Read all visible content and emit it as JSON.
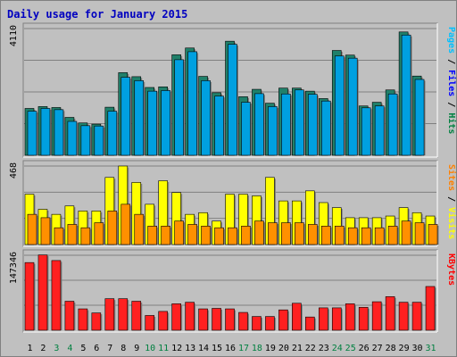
{
  "chart_data": {
    "type": "bar",
    "title": "Daily usage for January 2015",
    "categories": [
      "1",
      "2",
      "3",
      "4",
      "5",
      "6",
      "7",
      "8",
      "9",
      "10",
      "11",
      "12",
      "13",
      "14",
      "15",
      "16",
      "17",
      "18",
      "19",
      "20",
      "21",
      "22",
      "23",
      "24",
      "25",
      "26",
      "27",
      "28",
      "29",
      "30",
      "31"
    ],
    "weekend_days": [
      "3",
      "4",
      "10",
      "11",
      "17",
      "18",
      "24",
      "25",
      "31"
    ],
    "grid": true,
    "panels": [
      {
        "id": "hits-files-pages",
        "max_label": "4110",
        "ymax": 4110,
        "legend": [
          "Pages",
          "Files",
          "Hits"
        ],
        "legend_colors": [
          "#00c0ff",
          "#0000ff",
          "#008040"
        ],
        "series": [
          {
            "name": "Hits",
            "color": "#20806a",
            "values": [
              1520,
              1580,
              1550,
              1230,
              1050,
              1010,
              1560,
              2680,
              2550,
              2200,
              2220,
              3260,
              3480,
              2560,
              2030,
              3700,
              1900,
              2140,
              1690,
              2180,
              2180,
              2080,
              1840,
              3400,
              3250,
              1600,
              1720,
              2120,
              4000,
              2570,
              0
            ]
          },
          {
            "name": "Files",
            "color": "#00a0e0",
            "values": [
              1430,
              1520,
              1480,
              1100,
              960,
              950,
              1430,
              2530,
              2420,
              2080,
              2100,
              3100,
              3360,
              2420,
              1920,
              3600,
              1720,
              2000,
              1580,
              1990,
              2120,
              1980,
              1760,
              3220,
              3150,
              1540,
              1600,
              1990,
              3900,
              2460,
              0
            ]
          },
          {
            "name": "Pages",
            "color": "#1f6fd0",
            "values": [
              0,
              0,
              0,
              0,
              0,
              0,
              0,
              0,
              0,
              0,
              0,
              0,
              0,
              0,
              0,
              0,
              0,
              0,
              0,
              0,
              0,
              0,
              0,
              0,
              0,
              0,
              0,
              0,
              0,
              0,
              0
            ]
          }
        ]
      },
      {
        "id": "visits-sites",
        "max_label": "468",
        "ymax": 468,
        "legend": [
          "Sites",
          "Visits"
        ],
        "legend_colors": [
          "#ff8000",
          "#ffff00"
        ],
        "series": [
          {
            "name": "Visits",
            "color": "#ffff00",
            "values": [
              300,
              210,
              180,
              230,
              200,
              200,
              400,
              468,
              370,
              240,
              380,
              310,
              180,
              190,
              140,
              300,
              300,
              290,
              400,
              260,
              260,
              320,
              250,
              220,
              160,
              160,
              160,
              170,
              220,
              190,
              170
            ]
          },
          {
            "name": "Sites",
            "color": "#ff9000",
            "values": [
              180,
              160,
              100,
              120,
              100,
              130,
              200,
              240,
              180,
              110,
              110,
              140,
              120,
              110,
              100,
              100,
              110,
              140,
              130,
              130,
              130,
              120,
              110,
              110,
              100,
              100,
              100,
              110,
              140,
              130,
              120
            ]
          }
        ]
      },
      {
        "id": "kbytes",
        "max_label": "147346",
        "ymax": 147346,
        "legend": [
          "KBytes"
        ],
        "legend_colors": [
          "#ff0000"
        ],
        "series": [
          {
            "name": "KBytes",
            "color": "#ff2020",
            "values": [
              133000,
              148000,
              137000,
              57000,
              42000,
              34000,
              62000,
              62000,
              57000,
              29000,
              37000,
              52000,
              55000,
              42000,
              43000,
              42000,
              35000,
              27000,
              27000,
              40000,
              53000,
              26000,
              44000,
              44000,
              52000,
              45000,
              56000,
              66000,
              55000,
              55000,
              86000
            ]
          }
        ]
      }
    ]
  }
}
